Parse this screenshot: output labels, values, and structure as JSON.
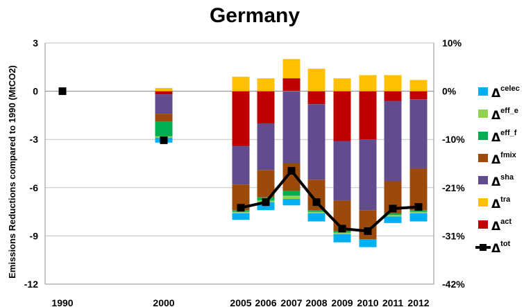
{
  "chart_data": {
    "type": "bar",
    "title": "Germany",
    "ylabel": "Emissions Reductions compared to 1990 (MtCO2)",
    "ylim": [
      -12,
      3
    ],
    "yticks": [
      "3",
      "0",
      "-3",
      "-6",
      "-9",
      "-12"
    ],
    "y2ticks": [
      "10%",
      "0%",
      "-10%",
      "-21%",
      "-31%",
      "-42%"
    ],
    "categories": [
      "1990",
      "2000",
      "2005",
      "2006",
      "2007",
      "2008",
      "2009",
      "2010",
      "2011",
      "2012"
    ],
    "stack_order": [
      "act",
      "tra",
      "sha",
      "fmix",
      "eff_f",
      "eff_e",
      "celec"
    ],
    "series": [
      {
        "name": "Δcelec",
        "sup": "celec",
        "color": "#00B0F0",
        "values": [
          0,
          -0.3,
          -0.4,
          -0.5,
          -0.4,
          -0.5,
          -0.5,
          -0.5,
          -0.4,
          -0.5
        ]
      },
      {
        "name": "Δeff_e",
        "sup": "eff_e",
        "color": "#92D050",
        "values": [
          0,
          -0.1,
          -0.1,
          -0.1,
          -0.2,
          -0.1,
          -0.1,
          0,
          -0.1,
          -0.1
        ]
      },
      {
        "name": "Δeff_f",
        "sup": "eff_f",
        "color": "#00B050",
        "values": [
          0,
          -0.9,
          -0.1,
          -0.2,
          -0.3,
          -0.1,
          -0.1,
          0,
          -0.1,
          -0.1
        ]
      },
      {
        "name": "Δfmix",
        "sup": "fmix",
        "color": "#9C4A0C",
        "values": [
          0,
          -0.5,
          -1.6,
          -1.7,
          -1.7,
          -1.9,
          -1.9,
          -1.8,
          -2.0,
          -2.6
        ]
      },
      {
        "name": "Δsha",
        "sup": "sha",
        "color": "#624C8E",
        "values": [
          0,
          -1.2,
          -2.4,
          -2.9,
          -4.5,
          -4.7,
          -3.7,
          -4.4,
          -5.0,
          -4.3
        ]
      },
      {
        "name": "Δtra",
        "sup": "tra",
        "color": "#FFC000",
        "values": [
          0,
          0.2,
          0.9,
          0.8,
          1.2,
          1.4,
          0.8,
          1.0,
          1.0,
          0.7
        ]
      },
      {
        "name": "Δact",
        "sup": "act",
        "color": "#C00000",
        "values": [
          0,
          -0.2,
          -3.4,
          -2.0,
          0.8,
          -0.8,
          -3.1,
          -3.0,
          -0.6,
          -0.5
        ]
      }
    ],
    "line": {
      "name": "Δtot",
      "sup": "tot",
      "color": "#000000",
      "values": [
        0,
        -3.05,
        -7.25,
        -6.9,
        -4.95,
        -6.9,
        -8.55,
        -8.7,
        -7.3,
        -7.2
      ]
    }
  }
}
